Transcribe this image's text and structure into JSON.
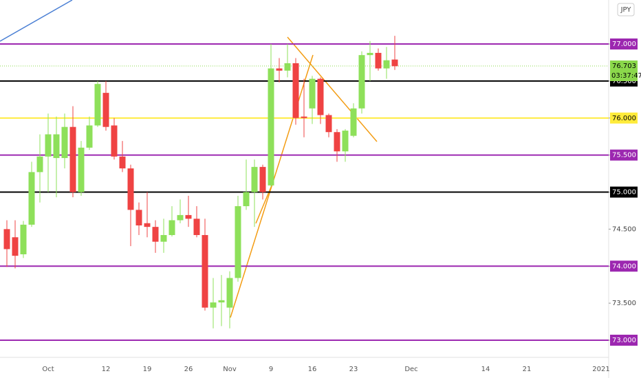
{
  "chart_data": {
    "type": "candlestick",
    "currency": "JPY",
    "categories": [
      null,
      null,
      null,
      null,
      null,
      "Oct",
      null,
      null,
      null,
      null,
      null,
      null,
      "12",
      null,
      null,
      null,
      null,
      "19",
      null,
      null,
      null,
      null,
      "26",
      null,
      null,
      null,
      null,
      "Nov",
      null,
      null,
      null,
      null,
      "9",
      null,
      null,
      null,
      null,
      "16",
      null,
      null,
      null,
      null,
      "23",
      null,
      null,
      null,
      null,
      null,
      null,
      "Dec",
      null,
      null,
      null,
      null,
      null,
      null,
      null,
      null,
      "14",
      null,
      null,
      null,
      null,
      "21",
      null,
      null,
      null,
      null,
      null,
      null,
      null,
      null,
      "2021",
      null
    ],
    "series": [
      {
        "up_color": "#8ee05a",
        "down_color": "#ef4343",
        "open": [
          74.5,
          74.39,
          74.16,
          74.56,
          75.27,
          75.48,
          75.46,
          75.46,
          75.88,
          75.0,
          75.6,
          75.9,
          76.34,
          75.9,
          75.48,
          75.32,
          74.76,
          74.58,
          74.53,
          74.33,
          74.42,
          74.62,
          74.69,
          74.64,
          74.42,
          73.44,
          73.51,
          73.44,
          73.84,
          74.81,
          75.0,
          75.34,
          75.09,
          76.67,
          76.64,
          76.74,
          76.02,
          76.13,
          76.53,
          76.04,
          75.81,
          75.55,
          75.76,
          76.13,
          76.85,
          76.88,
          76.67,
          76.79,
          null,
          null,
          null,
          null,
          null,
          null,
          null,
          null,
          null,
          null,
          null,
          null,
          null,
          null,
          null,
          null,
          null,
          null,
          null,
          null,
          null,
          null,
          null,
          null,
          null
        ],
        "high": [
          74.62,
          74.62,
          74.61,
          75.41,
          75.78,
          76.06,
          76.02,
          76.06,
          76.16,
          75.69,
          76.02,
          76.5,
          76.5,
          76.0,
          75.69,
          75.37,
          74.86,
          75.0,
          74.62,
          74.64,
          74.81,
          74.9,
          74.95,
          74.81,
          74.64,
          73.84,
          73.88,
          73.93,
          74.95,
          75.44,
          75.44,
          75.37,
          77.0,
          76.81,
          77.0,
          76.81,
          76.53,
          76.57,
          76.55,
          76.06,
          75.85,
          75.85,
          76.2,
          76.9,
          77.04,
          76.94,
          76.96,
          77.11,
          null,
          null,
          null,
          null,
          null,
          null,
          null,
          null,
          null,
          null,
          null,
          null,
          null,
          null,
          null,
          null,
          null,
          null,
          null,
          null,
          null,
          null,
          null,
          null,
          null
        ],
        "low": [
          73.99,
          73.97,
          74.11,
          74.53,
          74.86,
          75.0,
          74.93,
          75.32,
          74.93,
          74.95,
          75.57,
          75.88,
          75.83,
          75.44,
          75.27,
          74.27,
          74.42,
          74.39,
          74.18,
          74.18,
          74.4,
          74.58,
          74.53,
          74.39,
          73.4,
          73.16,
          73.19,
          73.16,
          73.79,
          74.76,
          74.53,
          74.9,
          75.07,
          76.48,
          76.55,
          75.91,
          75.74,
          75.92,
          75.92,
          75.74,
          75.41,
          75.41,
          75.74,
          76.06,
          76.5,
          76.64,
          76.53,
          76.65,
          null,
          null,
          null,
          null,
          null,
          null,
          null,
          null,
          null,
          null,
          null,
          null,
          null,
          null,
          null,
          null,
          null,
          null,
          null,
          null,
          null,
          null,
          null,
          null,
          null
        ],
        "close": [
          74.23,
          74.14,
          74.56,
          75.27,
          75.48,
          75.78,
          75.78,
          75.88,
          75.0,
          75.6,
          75.9,
          76.46,
          75.88,
          75.48,
          75.32,
          74.76,
          74.55,
          74.53,
          74.33,
          74.42,
          74.62,
          74.69,
          74.64,
          74.42,
          73.44,
          73.51,
          73.54,
          73.84,
          74.81,
          75.0,
          75.34,
          75.0,
          76.67,
          76.64,
          76.74,
          76.0,
          76.0,
          76.53,
          76.04,
          75.81,
          75.55,
          75.83,
          76.13,
          76.85,
          76.88,
          76.67,
          76.78,
          76.7,
          null,
          null,
          null,
          null,
          null,
          null,
          null,
          null,
          null,
          null,
          null,
          null,
          null,
          null,
          null,
          null,
          null,
          null,
          null,
          null,
          null,
          null,
          null,
          null,
          null
        ]
      }
    ],
    "last_price": 76.703,
    "last_color": "#8bd84b",
    "countdown": "03:37:47",
    "levels": [
      {
        "value": 77,
        "color": "#9c27b0"
      },
      {
        "value": 76.5,
        "color": "#000000"
      },
      {
        "value": 76,
        "color": "#ffeb3b"
      },
      {
        "value": 75.5,
        "color": "#9c27b0"
      },
      {
        "value": 75,
        "color": "#000000"
      },
      {
        "value": 74,
        "color": "#9c27b0"
      },
      {
        "value": 73,
        "color": "#9c27b0"
      }
    ],
    "ylim": [
      72.768,
      77.594
    ],
    "yticks": [
      {
        "value": 73,
        "label": "73.000"
      },
      {
        "value": 73.5,
        "label": "73.500"
      },
      {
        "value": 74,
        "label": "74.000"
      },
      {
        "value": 74.5,
        "label": "74.500"
      },
      {
        "value": 75,
        "label": "75.000"
      },
      {
        "value": 75.5,
        "label": "75.500"
      },
      {
        "value": 76,
        "label": "76.000"
      },
      {
        "value": 76.5,
        "label": "76.500"
      },
      {
        "value": 77,
        "label": "77.000"
      }
    ]
  }
}
